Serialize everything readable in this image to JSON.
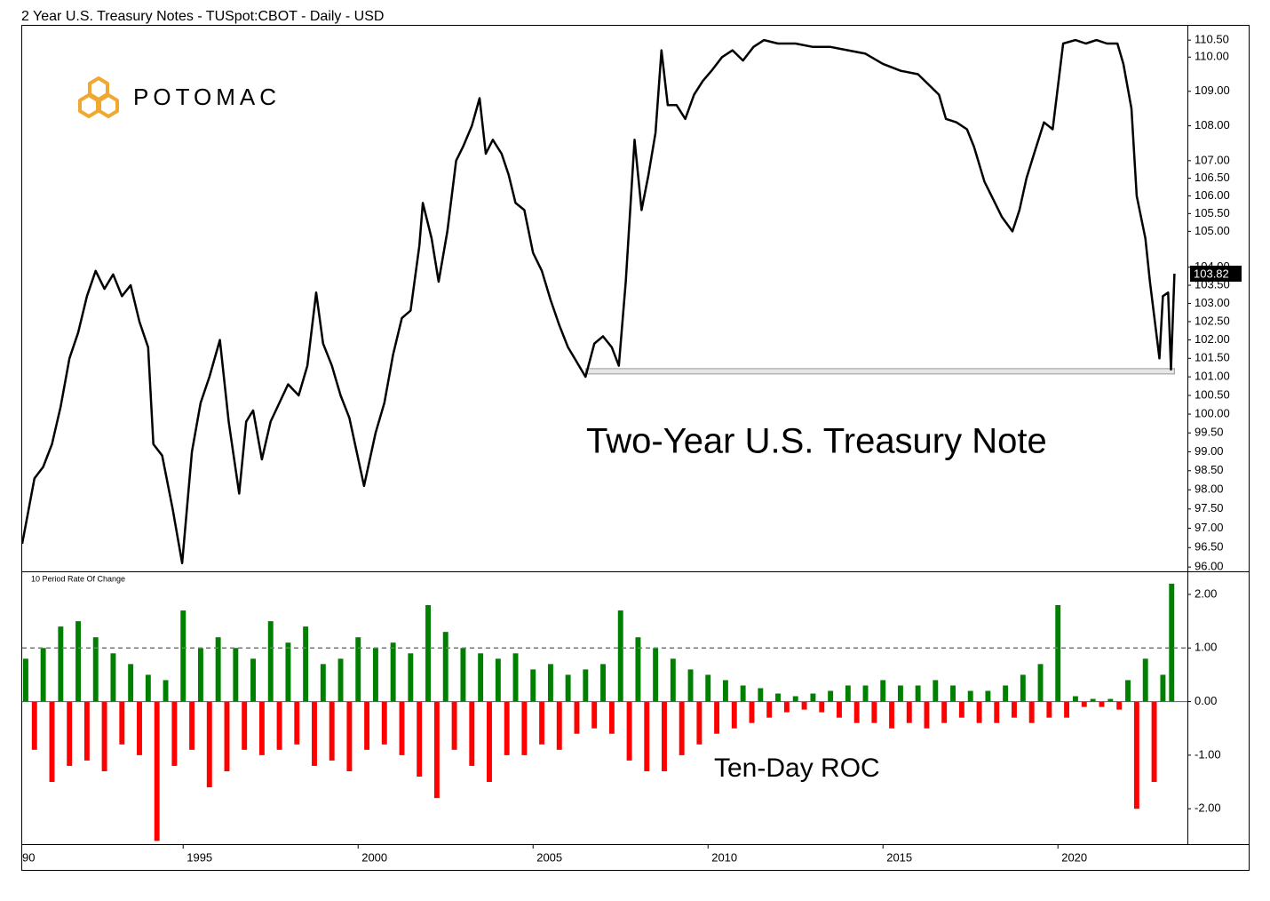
{
  "chart_data": [
    {
      "type": "line",
      "title": "2 Year U.S. Treasury Notes - TUSpot:CBOT - Daily - USD",
      "logo": "POTOMAC",
      "annotation": "Two-Year U.S. Treasury Note",
      "color": "#000000",
      "log_y": true,
      "xlim": [
        1990.4,
        2023.7
      ],
      "ylim": [
        95.89,
        110.95
      ],
      "yticks": [
        {
          "value": 96,
          "label": "96.00"
        },
        {
          "value": 96.5,
          "label": "96.50"
        },
        {
          "value": 97,
          "label": "97.00"
        },
        {
          "value": 97.5,
          "label": "97.50"
        },
        {
          "value": 98,
          "label": "98.00"
        },
        {
          "value": 98.5,
          "label": "98.50"
        },
        {
          "value": 99,
          "label": "99.00"
        },
        {
          "value": 99.5,
          "label": "99.50"
        },
        {
          "value": 100,
          "label": "100.00"
        },
        {
          "value": 100.5,
          "label": "100.50"
        },
        {
          "value": 101,
          "label": "101.00"
        },
        {
          "value": 101.5,
          "label": "101.50"
        },
        {
          "value": 102,
          "label": "102.00"
        },
        {
          "value": 102.5,
          "label": "102.50"
        },
        {
          "value": 103,
          "label": "103.00"
        },
        {
          "value": 103.5,
          "label": "103.50"
        },
        {
          "value": 104,
          "label": "104.00"
        },
        {
          "value": 105,
          "label": "105.00"
        },
        {
          "value": 105.5,
          "label": "105.50"
        },
        {
          "value": 106,
          "label": "106.00"
        },
        {
          "value": 106.5,
          "label": "106.50"
        },
        {
          "value": 107,
          "label": "107.00"
        },
        {
          "value": 108,
          "label": "108.00"
        },
        {
          "value": 109,
          "label": "109.00"
        },
        {
          "value": 110,
          "label": "110.00"
        },
        {
          "value": 110.5,
          "label": "110.50"
        }
      ],
      "reference_lines": [
        {
          "value": 101.15,
          "from": 2006.5,
          "to": 2023.33
        }
      ],
      "x": [
        1990.4,
        1990.75,
        1991.0,
        1991.25,
        1991.5,
        1991.75,
        1992.0,
        1992.25,
        1992.5,
        1992.75,
        1993.0,
        1993.25,
        1993.5,
        1993.75,
        1994.0,
        1994.15,
        1994.4,
        1994.7,
        1994.97,
        1995.25,
        1995.5,
        1995.75,
        1996.05,
        1996.3,
        1996.6,
        1996.8,
        1997.0,
        1997.25,
        1997.5,
        1997.75,
        1998.0,
        1998.3,
        1998.55,
        1998.8,
        1999.0,
        1999.25,
        1999.5,
        1999.75,
        2000.17,
        2000.5,
        2000.75,
        2001.0,
        2001.25,
        2001.5,
        2001.75,
        2001.85,
        2002.1,
        2002.3,
        2002.55,
        2002.8,
        2003.0,
        2003.25,
        2003.47,
        2003.65,
        2003.85,
        2004.1,
        2004.3,
        2004.5,
        2004.75,
        2005.0,
        2005.25,
        2005.5,
        2005.75,
        2006.0,
        2006.25,
        2006.5,
        2006.75,
        2007.0,
        2007.25,
        2007.45,
        2007.65,
        2007.9,
        2008.1,
        2008.3,
        2008.5,
        2008.67,
        2008.85,
        2009.1,
        2009.35,
        2009.6,
        2009.85,
        2010.1,
        2010.4,
        2010.7,
        2011.0,
        2011.3,
        2011.6,
        2012.0,
        2012.5,
        2013.0,
        2013.5,
        2014.0,
        2014.5,
        2015.0,
        2015.5,
        2016.0,
        2016.3,
        2016.6,
        2016.8,
        2017.1,
        2017.4,
        2017.6,
        2017.9,
        2018.1,
        2018.4,
        2018.7,
        2018.9,
        2019.1,
        2019.35,
        2019.6,
        2019.85,
        2020.15,
        2020.5,
        2020.8,
        2021.1,
        2021.4,
        2021.7,
        2021.87,
        2022.1,
        2022.25,
        2022.5,
        2022.63,
        2022.9,
        2023.0,
        2023.15,
        2023.23,
        2023.33
      ],
      "values": [
        96.6,
        98.3,
        98.6,
        99.2,
        100.2,
        101.5,
        102.2,
        103.2,
        103.9,
        103.4,
        103.8,
        103.2,
        103.5,
        102.5,
        101.8,
        99.2,
        98.9,
        97.5,
        96.1,
        99.0,
        100.3,
        101.0,
        102.0,
        99.8,
        97.9,
        99.8,
        100.1,
        98.8,
        99.8,
        100.3,
        100.8,
        100.5,
        101.3,
        103.3,
        101.9,
        101.3,
        100.5,
        99.9,
        98.1,
        99.5,
        100.3,
        101.6,
        102.6,
        102.8,
        104.6,
        105.8,
        104.8,
        103.6,
        105.0,
        107.0,
        107.4,
        108.0,
        108.8,
        107.2,
        107.6,
        107.2,
        106.6,
        105.8,
        105.6,
        104.4,
        103.9,
        103.1,
        102.4,
        101.8,
        101.4,
        101.0,
        101.9,
        102.1,
        101.8,
        101.3,
        103.6,
        107.6,
        105.6,
        106.6,
        107.8,
        110.2,
        108.6,
        108.6,
        108.2,
        108.9,
        109.3,
        109.6,
        110.0,
        110.2,
        109.9,
        110.3,
        110.5,
        110.4,
        110.4,
        110.3,
        110.3,
        110.2,
        110.1,
        109.8,
        109.6,
        109.5,
        109.2,
        108.9,
        108.2,
        108.1,
        107.9,
        107.4,
        106.4,
        106.0,
        105.4,
        105.0,
        105.6,
        106.5,
        107.3,
        108.1,
        107.9,
        110.4,
        110.5,
        110.4,
        110.5,
        110.4,
        110.4,
        109.8,
        108.5,
        106.0,
        104.8,
        103.6,
        101.5,
        103.2,
        103.3,
        101.2,
        103.82
      ]
    },
    {
      "type": "bar",
      "title": "10 Period Rate Of Change",
      "annotation": "Ten-Day ROC",
      "positive_color": "#008000",
      "negative_color": "#ff0000",
      "xlim": [
        1990.4,
        2023.7
      ],
      "ylim": [
        -2.66,
        2.43
      ],
      "yticks": [
        {
          "value": -2,
          "label": "-2.00"
        },
        {
          "value": -1,
          "label": "-1.00"
        },
        {
          "value": 0,
          "label": "0.00"
        },
        {
          "value": 1,
          "label": "1.00"
        },
        {
          "value": 2,
          "label": "2.00"
        }
      ],
      "xticks": [
        {
          "value": 1990,
          "label": "90"
        },
        1995,
        2000,
        2005,
        2010,
        2015,
        2020
      ],
      "reference_lines": [
        {
          "value": 1
        }
      ],
      "x": [
        1990.5,
        1990.75,
        1991.0,
        1991.25,
        1991.5,
        1991.75,
        1992.0,
        1992.25,
        1992.5,
        1992.75,
        1993.0,
        1993.25,
        1993.5,
        1993.75,
        1994.0,
        1994.25,
        1994.5,
        1994.75,
        1995.0,
        1995.25,
        1995.5,
        1995.75,
        1996.0,
        1996.25,
        1996.5,
        1996.75,
        1997.0,
        1997.25,
        1997.5,
        1997.75,
        1998.0,
        1998.25,
        1998.5,
        1998.75,
        1999.0,
        1999.25,
        1999.5,
        1999.75,
        2000.0,
        2000.25,
        2000.5,
        2000.75,
        2001.0,
        2001.25,
        2001.5,
        2001.75,
        2002.0,
        2002.25,
        2002.5,
        2002.75,
        2003.0,
        2003.25,
        2003.5,
        2003.75,
        2004.0,
        2004.25,
        2004.5,
        2004.75,
        2005.0,
        2005.25,
        2005.5,
        2005.75,
        2006.0,
        2006.25,
        2006.5,
        2006.75,
        2007.0,
        2007.25,
        2007.5,
        2007.75,
        2008.0,
        2008.25,
        2008.5,
        2008.75,
        2009.0,
        2009.25,
        2009.5,
        2009.75,
        2010.0,
        2010.25,
        2010.5,
        2010.75,
        2011.0,
        2011.25,
        2011.5,
        2011.75,
        2012.0,
        2012.25,
        2012.5,
        2012.75,
        2013.0,
        2013.25,
        2013.5,
        2013.75,
        2014.0,
        2014.25,
        2014.5,
        2014.75,
        2015.0,
        2015.25,
        2015.5,
        2015.75,
        2016.0,
        2016.25,
        2016.5,
        2016.75,
        2017.0,
        2017.25,
        2017.5,
        2017.75,
        2018.0,
        2018.25,
        2018.5,
        2018.75,
        2019.0,
        2019.25,
        2019.5,
        2019.75,
        2020.0,
        2020.25,
        2020.5,
        2020.75,
        2021.0,
        2021.25,
        2021.5,
        2021.75,
        2022.0,
        2022.25,
        2022.5,
        2022.75,
        2023.0,
        2023.25
      ],
      "values": [
        0.8,
        -0.9,
        1.0,
        -1.5,
        1.4,
        -1.2,
        1.5,
        -1.1,
        1.2,
        -1.3,
        0.9,
        -0.8,
        0.7,
        -1.0,
        0.5,
        -2.6,
        0.4,
        -1.2,
        1.7,
        -0.9,
        1.0,
        -1.6,
        1.2,
        -1.3,
        1.0,
        -0.9,
        0.8,
        -1.0,
        1.5,
        -0.9,
        1.1,
        -0.8,
        1.4,
        -1.2,
        0.7,
        -1.1,
        0.8,
        -1.3,
        1.2,
        -0.9,
        1.0,
        -0.8,
        1.1,
        -1.0,
        0.9,
        -1.4,
        1.8,
        -1.8,
        1.3,
        -0.9,
        1.0,
        -1.2,
        0.9,
        -1.5,
        0.8,
        -1.0,
        0.9,
        -1.0,
        0.6,
        -0.8,
        0.7,
        -0.9,
        0.5,
        -0.6,
        0.6,
        -0.5,
        0.7,
        -0.6,
        1.7,
        -1.1,
        1.2,
        -1.3,
        1.0,
        -1.3,
        0.8,
        -1.0,
        0.6,
        -0.8,
        0.5,
        -0.6,
        0.4,
        -0.5,
        0.3,
        -0.4,
        0.25,
        -0.3,
        0.15,
        -0.2,
        0.1,
        -0.15,
        0.15,
        -0.2,
        0.2,
        -0.3,
        0.3,
        -0.4,
        0.3,
        -0.4,
        0.4,
        -0.5,
        0.3,
        -0.4,
        0.3,
        -0.5,
        0.4,
        -0.4,
        0.3,
        -0.3,
        0.2,
        -0.4,
        0.2,
        -0.4,
        0.3,
        -0.3,
        0.5,
        -0.4,
        0.7,
        -0.3,
        1.8,
        -0.3,
        0.1,
        -0.1,
        0.05,
        -0.1,
        0.05,
        -0.15,
        0.4,
        -2.0,
        0.8,
        -1.5,
        0.5,
        2.2
      ]
    }
  ]
}
